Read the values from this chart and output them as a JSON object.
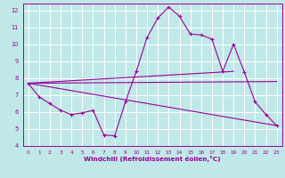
{
  "xlabel": "Windchill (Refroidissement éolien,°C)",
  "xlim": [
    -0.5,
    23.5
  ],
  "ylim": [
    4,
    12.4
  ],
  "xticks": [
    0,
    1,
    2,
    3,
    4,
    5,
    6,
    7,
    8,
    9,
    10,
    11,
    12,
    13,
    14,
    15,
    16,
    17,
    18,
    19,
    20,
    21,
    22,
    23
  ],
  "yticks": [
    4,
    5,
    6,
    7,
    8,
    9,
    10,
    11,
    12
  ],
  "bg_color": "#c0e8e8",
  "line_color": "#990099",
  "grid_color": "#ffffff",
  "line1_x": [
    0,
    1,
    2,
    3,
    4,
    5,
    6,
    7,
    8,
    9,
    10,
    11,
    12,
    13,
    14,
    15,
    16,
    17,
    18,
    19,
    20,
    21,
    22,
    23
  ],
  "line1_y": [
    7.7,
    6.9,
    6.5,
    6.1,
    5.85,
    5.95,
    6.1,
    4.65,
    4.6,
    6.6,
    8.4,
    10.4,
    11.55,
    12.2,
    11.65,
    10.6,
    10.55,
    10.3,
    8.4,
    10.0,
    8.35,
    6.6,
    5.85,
    5.2
  ],
  "line2_x": [
    0,
    19
  ],
  "line2_y": [
    7.7,
    8.4
  ],
  "line3_x": [
    0,
    23
  ],
  "line3_y": [
    7.7,
    5.2
  ],
  "line4_x": [
    0,
    23
  ],
  "line4_y": [
    7.7,
    7.8
  ]
}
